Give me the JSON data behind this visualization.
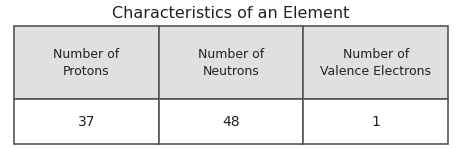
{
  "title": "Characteristics of an Element",
  "title_fontsize": 11.5,
  "headers": [
    "Number of\nProtons",
    "Number of\nNeutrons",
    "Number of\nValence Electrons"
  ],
  "values": [
    "37",
    "48",
    "1"
  ],
  "header_bg": "#e0e0e0",
  "value_bg": "#ffffff",
  "border_color": "#555555",
  "text_color": "#222222",
  "header_fontsize": 9,
  "value_fontsize": 10,
  "fig_bg": "#ffffff"
}
